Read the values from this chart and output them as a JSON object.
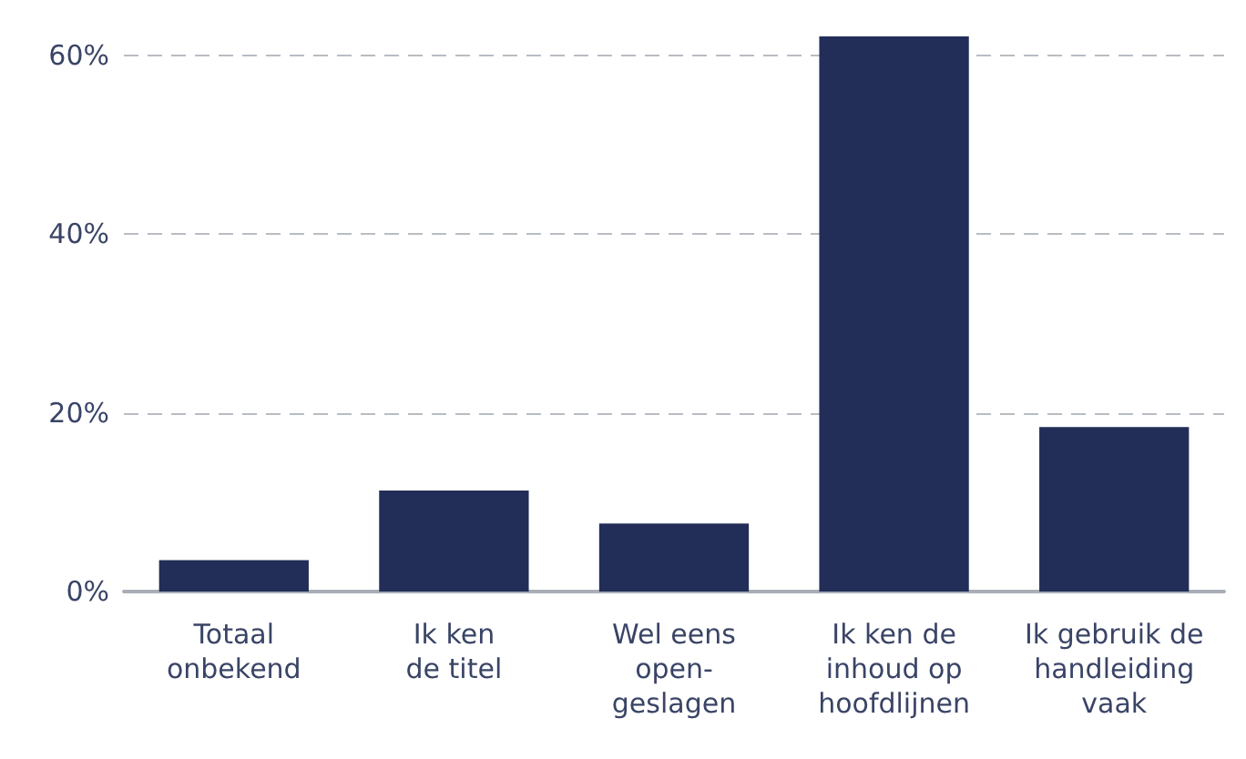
{
  "chart_data": {
    "type": "bar",
    "categories": [
      "Totaal\nonbekend",
      "Ik ken\nde titel",
      "Wel eens\nopen-\ngeslagen",
      "Ik ken de\ninhoud op\nhoofdlijnen",
      "Ik gebruik de\nhandleiding\nvaak"
    ],
    "values": [
      3.5,
      11.3,
      7.6,
      62.1,
      18.4
    ],
    "color": "#222e58",
    "yticks": [
      {
        "value": 0,
        "label": "0%"
      },
      {
        "value": 20,
        "label": "20%"
      },
      {
        "value": 40,
        "label": "40%"
      },
      {
        "value": 60,
        "label": "60%"
      }
    ],
    "ylim": [
      0,
      62.1
    ],
    "grid": "y"
  }
}
